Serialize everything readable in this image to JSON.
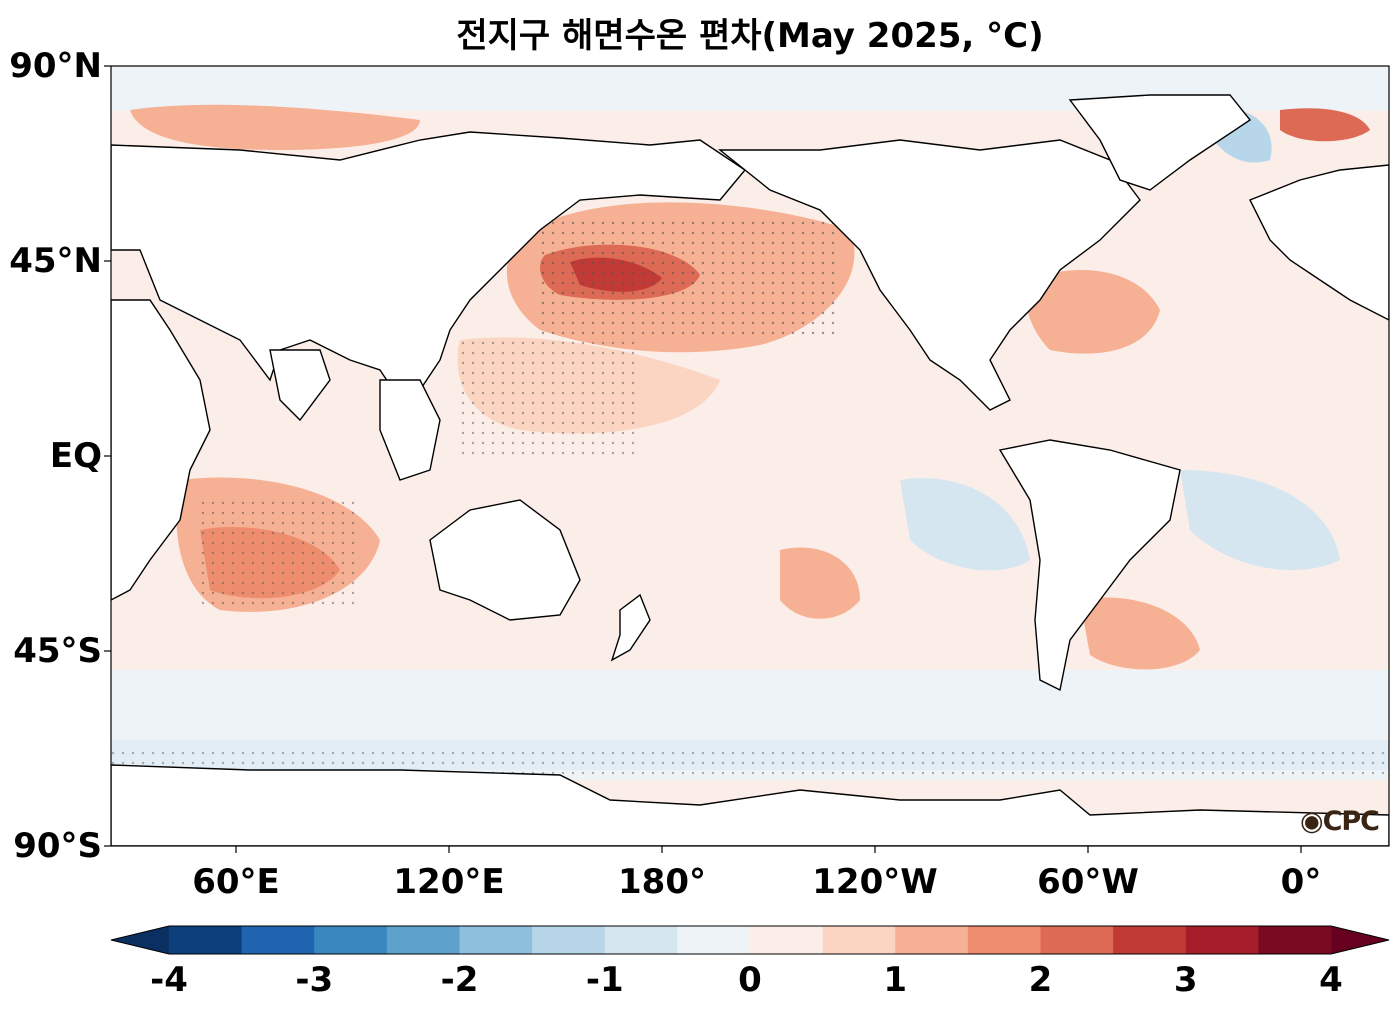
{
  "title": "전지구 해면수온 편차(May 2025, °C)",
  "logo_text": "CPC",
  "lat_ticks": [
    "90°N",
    "45°N",
    "EQ",
    "45°S",
    "90°S"
  ],
  "lon_ticks": [
    "60°E",
    "120°E",
    "180°",
    "120°W",
    "60°W",
    "0°"
  ],
  "colorbar": {
    "ticks": [
      "-4",
      "-3",
      "-2",
      "-1",
      "0",
      "1",
      "2",
      "3",
      "4"
    ],
    "colors": [
      "#0e3f7d",
      "#1f64af",
      "#3a87c0",
      "#5ca2cd",
      "#8ec0de",
      "#b7d6ea",
      "#d6e6f1",
      "#eef3f8",
      "#fbede7",
      "#fcd5c2",
      "#f6b094",
      "#ee8d6d",
      "#dc6a55",
      "#c13a36",
      "#a61c28",
      "#7a0a21"
    ],
    "under_color": "#0b2f60",
    "over_color": "#67001f"
  },
  "land_color": "#ffffff",
  "ocean_base_color": "#fbede7"
}
